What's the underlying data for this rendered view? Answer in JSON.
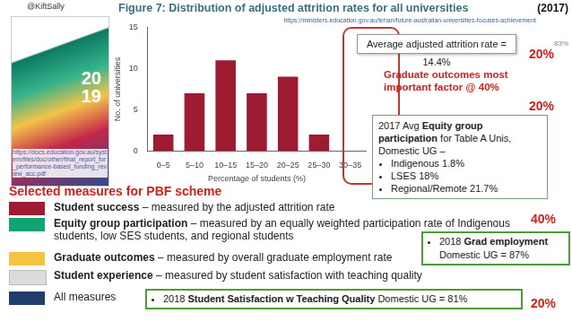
{
  "header": {
    "handle": "@KiftSally",
    "title": "Figure 7: Distribution of adjusted attrition rates for all universities",
    "year": "(2017)",
    "source_url": "https://ministers.education.gov.au/tehan/future-australian-universities-focuses-achievement"
  },
  "cover": {
    "year_lines": [
      "20",
      "19"
    ],
    "source_url": "https://docs.education.gov.au/system/files/doc/other/final_report_for_performance-based_funding_review_acc.pdf"
  },
  "chart_data": {
    "type": "bar",
    "categories": [
      "0–5",
      "5–10",
      "10–15",
      "15–20",
      "20–25",
      "25–30",
      "30–35"
    ],
    "values": [
      2,
      7,
      11,
      7,
      9,
      2,
      0
    ],
    "color": "#9e1b32",
    "x_label": "Percentage of students (%)",
    "y_label": "No. of universities",
    "ylim": [
      0,
      15
    ],
    "yticks": [
      0,
      5,
      10,
      15
    ],
    "grid": false
  },
  "annotations": {
    "average_box": "Average adjusted attrition rate = 14.4%",
    "factor_note": "Graduate outcomes most important factor @ 40%",
    "weights": [
      "20%",
      "20%",
      "40%",
      "20%"
    ],
    "small_label": "83%",
    "equity_box": {
      "heading_parts": [
        "2017 Avg ",
        "Equity group participation",
        " for Table A Unis, Domestic UG –"
      ],
      "bullets": [
        "Indigenous 1.8%",
        "LSES 18%",
        "Regional/Remote 21.7%"
      ]
    },
    "grad_box": {
      "parts": [
        "2018 ",
        "Grad employment",
        "Domestic UG = 87%"
      ]
    },
    "satisfaction_box": {
      "parts": [
        "2018 ",
        "Student Satisfaction w Teaching Quality",
        " Domestic UG = 81%"
      ]
    }
  },
  "measures": {
    "heading": "Selected measures for PBF scheme",
    "items": [
      {
        "color": "#9e1b32",
        "term": "Student success",
        "description": " – measured by the adjusted attrition rate"
      },
      {
        "color": "#12a372",
        "term": "Equity group participation",
        "description": " – measured by an equally weighted participation rate of Indigenous students, low SES students, and regional students"
      },
      {
        "color": "#f5c342",
        "term": "Graduate outcomes",
        "description": " – measured by overall graduate employment rate"
      },
      {
        "color": "#dcdcdc",
        "term": "Student experience",
        "description": " – measured by student satisfaction with teaching quality"
      },
      {
        "color": "#1f3e6e",
        "term": "All measures"
      }
    ]
  }
}
